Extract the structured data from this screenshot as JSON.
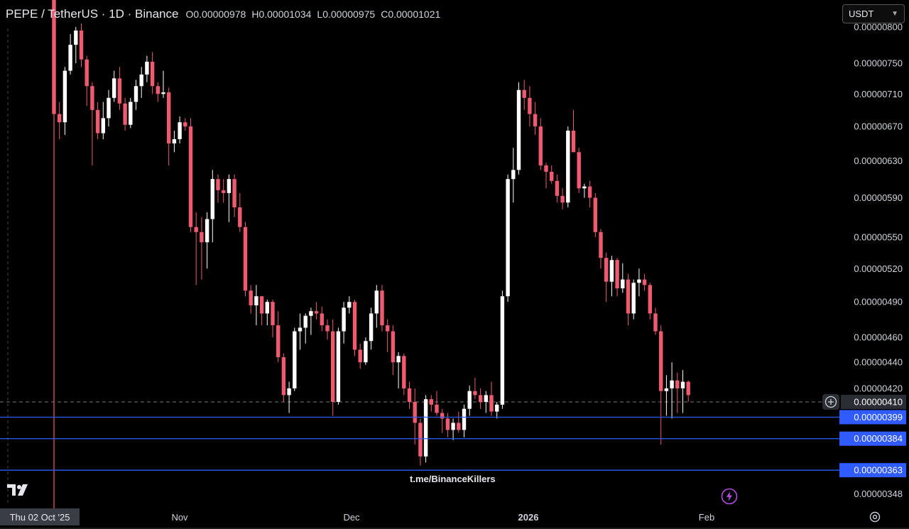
{
  "header": {
    "symbol": "PEPE / TetherUS · 1D · Binance",
    "open_label": "O",
    "open": "0.00000978",
    "high_label": "H",
    "high": "0.00001034",
    "low_label": "L",
    "low": "0.00000975",
    "close_label": "C",
    "close": "0.00001021"
  },
  "currency_select": {
    "value": "USDT"
  },
  "watermark": "t.me/BinanceKillers",
  "crosshair_date": "Thu 02 Oct '25",
  "colors": {
    "up": "#ffffff",
    "down": "#f05a70",
    "level": "#2f5bff",
    "badge": "#2f5bff"
  },
  "chart_data": {
    "type": "candlestick",
    "price_axis": {
      "ticks": [
        "0.00000800",
        "0.00000750",
        "0.00000710",
        "0.00000670",
        "0.00000630",
        "0.00000590",
        "0.00000550",
        "0.00000520",
        "0.00000490",
        "0.00000460",
        "0.00000440",
        "0.00000420",
        "0.00000348"
      ],
      "current_price": "0.00000410",
      "scale": "log"
    },
    "time_axis": {
      "ticks": [
        "Nov",
        "Dec",
        "2026",
        "Feb"
      ]
    },
    "levels": [
      "0.00000399",
      "0.00000384",
      "0.00000363"
    ],
    "candles": [
      {
        "o": 880,
        "h": 895,
        "l": 500,
        "c": 685
      },
      {
        "o": 685,
        "h": 700,
        "l": 655,
        "c": 675
      },
      {
        "o": 675,
        "h": 745,
        "l": 660,
        "c": 740
      },
      {
        "o": 740,
        "h": 790,
        "l": 735,
        "c": 775
      },
      {
        "o": 775,
        "h": 800,
        "l": 750,
        "c": 795
      },
      {
        "o": 795,
        "h": 805,
        "l": 745,
        "c": 755
      },
      {
        "o": 755,
        "h": 760,
        "l": 695,
        "c": 720
      },
      {
        "o": 720,
        "h": 725,
        "l": 625,
        "c": 690
      },
      {
        "o": 690,
        "h": 700,
        "l": 655,
        "c": 662
      },
      {
        "o": 662,
        "h": 700,
        "l": 655,
        "c": 680
      },
      {
        "o": 680,
        "h": 715,
        "l": 670,
        "c": 705
      },
      {
        "o": 705,
        "h": 740,
        "l": 700,
        "c": 730
      },
      {
        "o": 730,
        "h": 745,
        "l": 690,
        "c": 698
      },
      {
        "o": 698,
        "h": 705,
        "l": 665,
        "c": 672
      },
      {
        "o": 672,
        "h": 705,
        "l": 668,
        "c": 700
      },
      {
        "o": 700,
        "h": 728,
        "l": 690,
        "c": 720
      },
      {
        "o": 720,
        "h": 745,
        "l": 705,
        "c": 735
      },
      {
        "o": 735,
        "h": 760,
        "l": 725,
        "c": 752
      },
      {
        "o": 752,
        "h": 765,
        "l": 710,
        "c": 720
      },
      {
        "o": 720,
        "h": 725,
        "l": 700,
        "c": 710
      },
      {
        "o": 710,
        "h": 740,
        "l": 705,
        "c": 712
      },
      {
        "o": 712,
        "h": 718,
        "l": 625,
        "c": 650
      },
      {
        "o": 650,
        "h": 665,
        "l": 640,
        "c": 655
      },
      {
        "o": 655,
        "h": 682,
        "l": 650,
        "c": 675
      },
      {
        "o": 675,
        "h": 680,
        "l": 665,
        "c": 670
      },
      {
        "o": 670,
        "h": 680,
        "l": 555,
        "c": 560
      },
      {
        "o": 560,
        "h": 575,
        "l": 505,
        "c": 555
      },
      {
        "o": 555,
        "h": 570,
        "l": 510,
        "c": 545
      },
      {
        "o": 545,
        "h": 575,
        "l": 520,
        "c": 568
      },
      {
        "o": 568,
        "h": 620,
        "l": 545,
        "c": 610
      },
      {
        "o": 610,
        "h": 615,
        "l": 585,
        "c": 598
      },
      {
        "o": 598,
        "h": 610,
        "l": 585,
        "c": 595
      },
      {
        "o": 595,
        "h": 615,
        "l": 565,
        "c": 610
      },
      {
        "o": 610,
        "h": 615,
        "l": 570,
        "c": 580
      },
      {
        "o": 580,
        "h": 595,
        "l": 555,
        "c": 560
      },
      {
        "o": 560,
        "h": 565,
        "l": 495,
        "c": 500
      },
      {
        "o": 500,
        "h": 505,
        "l": 480,
        "c": 487
      },
      {
        "o": 487,
        "h": 505,
        "l": 470,
        "c": 495
      },
      {
        "o": 495,
        "h": 495,
        "l": 470,
        "c": 480
      },
      {
        "o": 480,
        "h": 492,
        "l": 470,
        "c": 490
      },
      {
        "o": 490,
        "h": 492,
        "l": 460,
        "c": 470
      },
      {
        "o": 470,
        "h": 482,
        "l": 440,
        "c": 444
      },
      {
        "o": 444,
        "h": 447,
        "l": 410,
        "c": 415
      },
      {
        "o": 415,
        "h": 425,
        "l": 402,
        "c": 420
      },
      {
        "o": 420,
        "h": 468,
        "l": 418,
        "c": 465
      },
      {
        "o": 465,
        "h": 480,
        "l": 450,
        "c": 468
      },
      {
        "o": 468,
        "h": 480,
        "l": 455,
        "c": 478
      },
      {
        "o": 478,
        "h": 485,
        "l": 462,
        "c": 482
      },
      {
        "o": 482,
        "h": 490,
        "l": 475,
        "c": 480
      },
      {
        "o": 480,
        "h": 486,
        "l": 465,
        "c": 470
      },
      {
        "o": 470,
        "h": 475,
        "l": 458,
        "c": 465
      },
      {
        "o": 465,
        "h": 475,
        "l": 400,
        "c": 410
      },
      {
        "o": 410,
        "h": 468,
        "l": 408,
        "c": 465
      },
      {
        "o": 465,
        "h": 490,
        "l": 455,
        "c": 485
      },
      {
        "o": 485,
        "h": 495,
        "l": 480,
        "c": 490
      },
      {
        "o": 490,
        "h": 492,
        "l": 445,
        "c": 450
      },
      {
        "o": 450,
        "h": 455,
        "l": 435,
        "c": 440
      },
      {
        "o": 440,
        "h": 460,
        "l": 438,
        "c": 457
      },
      {
        "o": 457,
        "h": 485,
        "l": 450,
        "c": 480
      },
      {
        "o": 480,
        "h": 505,
        "l": 468,
        "c": 500
      },
      {
        "o": 500,
        "h": 505,
        "l": 465,
        "c": 470
      },
      {
        "o": 470,
        "h": 475,
        "l": 448,
        "c": 465
      },
      {
        "o": 465,
        "h": 470,
        "l": 430,
        "c": 440
      },
      {
        "o": 440,
        "h": 448,
        "l": 420,
        "c": 445
      },
      {
        "o": 445,
        "h": 447,
        "l": 415,
        "c": 420
      },
      {
        "o": 420,
        "h": 425,
        "l": 405,
        "c": 410
      },
      {
        "o": 410,
        "h": 420,
        "l": 380,
        "c": 395
      },
      {
        "o": 395,
        "h": 398,
        "l": 366,
        "c": 372
      },
      {
        "o": 372,
        "h": 415,
        "l": 368,
        "c": 412
      },
      {
        "o": 412,
        "h": 415,
        "l": 403,
        "c": 408
      },
      {
        "o": 408,
        "h": 418,
        "l": 400,
        "c": 402
      },
      {
        "o": 402,
        "h": 405,
        "l": 388,
        "c": 398
      },
      {
        "o": 398,
        "h": 402,
        "l": 385,
        "c": 390
      },
      {
        "o": 390,
        "h": 398,
        "l": 383,
        "c": 395
      },
      {
        "o": 395,
        "h": 403,
        "l": 388,
        "c": 390
      },
      {
        "o": 390,
        "h": 408,
        "l": 385,
        "c": 405
      },
      {
        "o": 405,
        "h": 422,
        "l": 400,
        "c": 418
      },
      {
        "o": 418,
        "h": 428,
        "l": 412,
        "c": 415
      },
      {
        "o": 415,
        "h": 420,
        "l": 405,
        "c": 410
      },
      {
        "o": 410,
        "h": 418,
        "l": 402,
        "c": 415
      },
      {
        "o": 415,
        "h": 425,
        "l": 400,
        "c": 403
      },
      {
        "o": 403,
        "h": 410,
        "l": 398,
        "c": 408
      },
      {
        "o": 408,
        "h": 500,
        "l": 405,
        "c": 495
      },
      {
        "o": 495,
        "h": 615,
        "l": 490,
        "c": 610
      },
      {
        "o": 610,
        "h": 645,
        "l": 585,
        "c": 620
      },
      {
        "o": 620,
        "h": 725,
        "l": 615,
        "c": 715
      },
      {
        "o": 715,
        "h": 728,
        "l": 690,
        "c": 705
      },
      {
        "o": 705,
        "h": 720,
        "l": 670,
        "c": 685
      },
      {
        "o": 685,
        "h": 700,
        "l": 660,
        "c": 670
      },
      {
        "o": 670,
        "h": 680,
        "l": 620,
        "c": 625
      },
      {
        "o": 625,
        "h": 628,
        "l": 600,
        "c": 618
      },
      {
        "o": 618,
        "h": 625,
        "l": 605,
        "c": 608
      },
      {
        "o": 608,
        "h": 615,
        "l": 585,
        "c": 592
      },
      {
        "o": 592,
        "h": 600,
        "l": 578,
        "c": 585
      },
      {
        "o": 585,
        "h": 670,
        "l": 580,
        "c": 665
      },
      {
        "o": 665,
        "h": 690,
        "l": 640,
        "c": 640
      },
      {
        "o": 640,
        "h": 645,
        "l": 595,
        "c": 600
      },
      {
        "o": 600,
        "h": 605,
        "l": 590,
        "c": 602
      },
      {
        "o": 602,
        "h": 608,
        "l": 580,
        "c": 590
      },
      {
        "o": 590,
        "h": 595,
        "l": 550,
        "c": 555
      },
      {
        "o": 555,
        "h": 558,
        "l": 520,
        "c": 530
      },
      {
        "o": 530,
        "h": 535,
        "l": 490,
        "c": 508
      },
      {
        "o": 508,
        "h": 532,
        "l": 495,
        "c": 528
      },
      {
        "o": 528,
        "h": 530,
        "l": 495,
        "c": 502
      },
      {
        "o": 502,
        "h": 525,
        "l": 498,
        "c": 510
      },
      {
        "o": 510,
        "h": 515,
        "l": 470,
        "c": 480
      },
      {
        "o": 480,
        "h": 510,
        "l": 475,
        "c": 507
      },
      {
        "o": 507,
        "h": 520,
        "l": 495,
        "c": 510
      },
      {
        "o": 510,
        "h": 515,
        "l": 500,
        "c": 505
      },
      {
        "o": 505,
        "h": 507,
        "l": 475,
        "c": 480
      },
      {
        "o": 480,
        "h": 485,
        "l": 462,
        "c": 465
      },
      {
        "o": 465,
        "h": 470,
        "l": 380,
        "c": 418
      },
      {
        "o": 418,
        "h": 430,
        "l": 400,
        "c": 420
      },
      {
        "o": 420,
        "h": 440,
        "l": 398,
        "c": 426
      },
      {
        "o": 426,
        "h": 432,
        "l": 402,
        "c": 420
      },
      {
        "o": 420,
        "h": 434,
        "l": 402,
        "c": 425
      },
      {
        "o": 425,
        "h": 426,
        "l": 410,
        "c": 415
      }
    ]
  }
}
